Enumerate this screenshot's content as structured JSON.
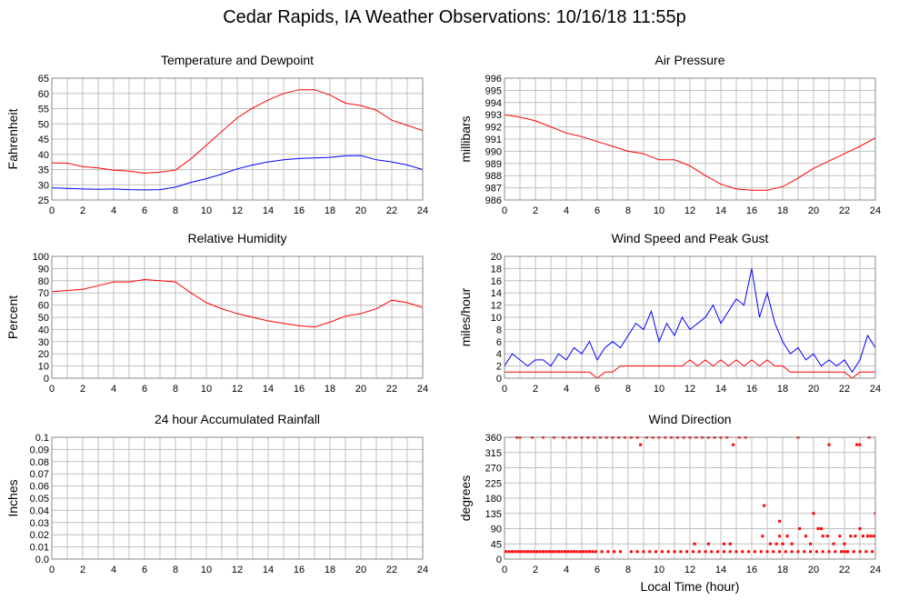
{
  "page": {
    "title": "Cedar Rapids, IA Weather Observations: 10/16/18 11:55p"
  },
  "colors": {
    "red": "#ff0000",
    "blue": "#0000ff",
    "grid": "#bfbfbf",
    "frame": "#888888"
  },
  "chart_data": [
    {
      "type": "line",
      "title": "Temperature and Dewpoint",
      "ylabel": "Fahrenheit",
      "xlabel": "",
      "xlim": [
        0,
        24
      ],
      "ylim": [
        25,
        65
      ],
      "xticks": [
        0,
        2,
        4,
        6,
        8,
        10,
        12,
        14,
        16,
        18,
        20,
        22,
        24
      ],
      "yticks": [
        25,
        30,
        35,
        40,
        45,
        50,
        55,
        60,
        65
      ],
      "grid": true,
      "series": [
        {
          "color": "#ff0000",
          "x": [
            0,
            1,
            2,
            3,
            4,
            5,
            6,
            7,
            8,
            9,
            10,
            11,
            12,
            13,
            14,
            15,
            16,
            17,
            18,
            19,
            20,
            21,
            22,
            23,
            24
          ],
          "y": [
            37.2,
            37.1,
            36,
            35.5,
            34.8,
            34.5,
            33.8,
            34.2,
            34.8,
            38.5,
            43,
            47.5,
            52,
            55.2,
            57.8,
            60,
            61.2,
            61.2,
            59.5,
            56.8,
            56,
            54.5,
            51.2,
            49.5,
            47.8
          ]
        },
        {
          "color": "#0000ff",
          "x": [
            0,
            1,
            2,
            3,
            4,
            5,
            6,
            7,
            8,
            9,
            10,
            11,
            12,
            13,
            14,
            15,
            16,
            17,
            18,
            19,
            20,
            21,
            22,
            23,
            24
          ],
          "y": [
            29,
            28.8,
            28.6,
            28.5,
            28.6,
            28.4,
            28.3,
            28.4,
            29.2,
            30.8,
            32,
            33.5,
            35.2,
            36.5,
            37.5,
            38.2,
            38.6,
            38.8,
            39,
            39.5,
            39.6,
            38.2,
            37.5,
            36.5,
            35
          ]
        }
      ]
    },
    {
      "type": "line",
      "title": "Air Pressure",
      "ylabel": "millibars",
      "xlabel": "",
      "xlim": [
        0,
        24
      ],
      "ylim": [
        986,
        996
      ],
      "xticks": [
        0,
        2,
        4,
        6,
        8,
        10,
        12,
        14,
        16,
        18,
        20,
        22,
        24
      ],
      "yticks": [
        986,
        987,
        988,
        989,
        990,
        991,
        992,
        993,
        994,
        995,
        996
      ],
      "grid": true,
      "series": [
        {
          "color": "#ff0000",
          "x": [
            0,
            1,
            2,
            3,
            4,
            5,
            6,
            7,
            8,
            9,
            10,
            11,
            12,
            13,
            14,
            15,
            16,
            17,
            18,
            19,
            20,
            21,
            22,
            23,
            24
          ],
          "y": [
            993,
            992.8,
            992.5,
            992,
            991.5,
            991.2,
            990.8,
            990.4,
            990,
            989.8,
            989.3,
            989.3,
            988.8,
            988,
            987.3,
            986.9,
            986.8,
            986.8,
            987.1,
            987.8,
            988.6,
            989.2,
            989.8,
            990.4,
            991.1
          ]
        }
      ]
    },
    {
      "type": "line",
      "title": "Relative Humidity",
      "ylabel": "Percent",
      "xlabel": "",
      "xlim": [
        0,
        24
      ],
      "ylim": [
        0,
        100
      ],
      "xticks": [
        0,
        2,
        4,
        6,
        8,
        10,
        12,
        14,
        16,
        18,
        20,
        22,
        24
      ],
      "yticks": [
        0,
        10,
        20,
        30,
        40,
        50,
        60,
        70,
        80,
        90,
        100
      ],
      "grid": true,
      "series": [
        {
          "color": "#ff0000",
          "x": [
            0,
            1,
            2,
            3,
            4,
            5,
            6,
            7,
            8,
            9,
            10,
            11,
            12,
            13,
            14,
            15,
            16,
            17,
            18,
            19,
            20,
            21,
            22,
            23,
            24
          ],
          "y": [
            71,
            72,
            73,
            76,
            79,
            79,
            81,
            80,
            79,
            70,
            62,
            57,
            53,
            50,
            47,
            45,
            43,
            42,
            46,
            51,
            53,
            57,
            64,
            62,
            58
          ]
        }
      ]
    },
    {
      "type": "line",
      "title": "Wind Speed and Peak Gust",
      "ylabel": "miles/hour",
      "xlabel": "",
      "xlim": [
        0,
        24
      ],
      "ylim": [
        0,
        20
      ],
      "xticks": [
        0,
        2,
        4,
        6,
        8,
        10,
        12,
        14,
        16,
        18,
        20,
        22,
        24
      ],
      "yticks": [
        0,
        2,
        4,
        6,
        8,
        10,
        12,
        14,
        16,
        18,
        20
      ],
      "grid": true,
      "series": [
        {
          "color": "#0000ff",
          "x": [
            0,
            0.5,
            1,
            1.5,
            2,
            2.5,
            3,
            3.5,
            4,
            4.5,
            5,
            5.5,
            6,
            6.5,
            7,
            7.5,
            8,
            8.5,
            9,
            9.5,
            10,
            10.5,
            11,
            11.5,
            12,
            12.5,
            13,
            13.5,
            14,
            14.5,
            15,
            15.5,
            16,
            16.5,
            17,
            17.5,
            18,
            18.5,
            19,
            19.5,
            20,
            20.5,
            21,
            21.5,
            22,
            22.5,
            23,
            23.5,
            24
          ],
          "y": [
            2,
            4,
            3,
            2,
            3,
            3,
            2,
            4,
            3,
            5,
            4,
            6,
            3,
            5,
            6,
            5,
            7,
            9,
            8,
            11,
            6,
            9,
            7,
            10,
            8,
            9,
            10,
            12,
            9,
            11,
            13,
            12,
            18,
            10,
            14,
            9,
            6,
            4,
            5,
            3,
            4,
            2,
            3,
            2,
            3,
            1,
            3,
            7,
            5
          ]
        },
        {
          "color": "#ff0000",
          "x": [
            0,
            0.5,
            1,
            1.5,
            2,
            2.5,
            3,
            3.5,
            4,
            4.5,
            5,
            5.5,
            6,
            6.5,
            7,
            7.5,
            8,
            8.5,
            9,
            9.5,
            10,
            10.5,
            11,
            11.5,
            12,
            12.5,
            13,
            13.5,
            14,
            14.5,
            15,
            15.5,
            16,
            16.5,
            17,
            17.5,
            18,
            18.5,
            19,
            19.5,
            20,
            20.5,
            21,
            21.5,
            22,
            22.5,
            23,
            23.5,
            24
          ],
          "y": [
            1,
            1,
            1,
            1,
            1,
            1,
            1,
            1,
            1,
            1,
            1,
            1,
            0,
            1,
            1,
            2,
            2,
            2,
            2,
            2,
            2,
            2,
            2,
            2,
            3,
            2,
            3,
            2,
            3,
            2,
            3,
            2,
            3,
            2,
            3,
            2,
            2,
            1,
            1,
            1,
            1,
            1,
            1,
            1,
            1,
            0,
            1,
            1,
            1
          ]
        }
      ]
    },
    {
      "type": "line",
      "title": "24 hour Accumulated Rainfall",
      "ylabel": "Inches",
      "xlabel": "",
      "xlim": [
        0,
        24
      ],
      "ylim": [
        0,
        0.1
      ],
      "xticks": [
        0,
        2,
        4,
        6,
        8,
        10,
        12,
        14,
        16,
        18,
        20,
        22,
        24
      ],
      "yticks": [
        0.0,
        0.01,
        0.02,
        0.03,
        0.04,
        0.05,
        0.06,
        0.07,
        0.08,
        0.09,
        0.1
      ],
      "ytick_labels": [
        "0.0",
        "0.01",
        "0.02",
        "0.03",
        "0.04",
        "0.05",
        "0.06",
        "0.07",
        "0.08",
        "0.09",
        "0.1"
      ],
      "grid": true,
      "series": [
        {
          "color": "#ff0000",
          "x": [
            0,
            24
          ],
          "y": [
            0,
            0
          ]
        }
      ]
    },
    {
      "type": "scatter",
      "title": "Wind Direction",
      "ylabel": "degrees",
      "xlabel": "Local Time (hour)",
      "xlim": [
        0,
        24
      ],
      "ylim": [
        0,
        360
      ],
      "xticks": [
        0,
        2,
        4,
        6,
        8,
        10,
        12,
        14,
        16,
        18,
        20,
        22,
        24
      ],
      "yticks": [
        0,
        45,
        90,
        135,
        180,
        225,
        270,
        315,
        360
      ],
      "grid": true,
      "series": [
        {
          "color": "#ff0000",
          "x": [
            0.1,
            0.3,
            0.5,
            0.7,
            0.9,
            1.1,
            1.3,
            1.5,
            1.7,
            1.9,
            2.1,
            2.3,
            2.5,
            2.7,
            2.9,
            3.1,
            3.3,
            3.5,
            3.7,
            3.9,
            4.1,
            4.3,
            4.5,
            4.7,
            4.9,
            5.1,
            5.3,
            5.5,
            5.7,
            5.9,
            6.3,
            6.7,
            7.1,
            7.5,
            8.2,
            8.6,
            9.0,
            9.4,
            9.8,
            10.2,
            10.6,
            11.0,
            11.4,
            11.8,
            12.2,
            12.6,
            13.0,
            13.4,
            13.8,
            14.2,
            14.6,
            15.0,
            15.4,
            15.8,
            16.2,
            16.6,
            17.0,
            17.4,
            17.8,
            18.2,
            18.6,
            19.0,
            19.4,
            19.8,
            20.2,
            20.6,
            21.0,
            21.4,
            21.8,
            22.2,
            22.6,
            23.0,
            23.4,
            23.8,
            0.8,
            1.0,
            1.8,
            2.5,
            3.2,
            3.8,
            4.2,
            4.6,
            5.0,
            5.4,
            5.8,
            6.2,
            6.6,
            7.0,
            7.4,
            7.8,
            8.2,
            8.6,
            8.8,
            9.2,
            9.6,
            10.0,
            10.4,
            10.8,
            11.2,
            11.6,
            12.0,
            12.4,
            12.8,
            13.2,
            13.6,
            14.0,
            14.4,
            14.8,
            15.2,
            15.6,
            19.0,
            21.0,
            22.8,
            23.0,
            23.6,
            12.3,
            13.2,
            14.2,
            14.6,
            16.7,
            17.2,
            17.6,
            17.8,
            18.0,
            18.3,
            18.6,
            19.1,
            19.5,
            19.8,
            20.3,
            20.6,
            20.9,
            21.3,
            21.7,
            22.0,
            22.2,
            22.4,
            22.7,
            23.0,
            23.2,
            23.5,
            23.7,
            23.9,
            24.0,
            16.8,
            17.8,
            20.0,
            20.5,
            22.0
          ],
          "y": [
            22,
            22,
            22,
            22,
            22,
            22,
            22,
            22,
            22,
            22,
            22,
            22,
            22,
            22,
            22,
            22,
            22,
            22,
            22,
            22,
            22,
            22,
            22,
            22,
            22,
            22,
            22,
            22,
            22,
            22,
            22,
            22,
            22,
            22,
            22,
            22,
            22,
            22,
            22,
            22,
            22,
            22,
            22,
            22,
            22,
            22,
            22,
            22,
            22,
            22,
            22,
            22,
            22,
            22,
            22,
            22,
            22,
            22,
            22,
            22,
            22,
            22,
            22,
            22,
            22,
            22,
            22,
            22,
            22,
            22,
            22,
            22,
            22,
            22,
            360,
            360,
            360,
            360,
            360,
            360,
            360,
            360,
            360,
            360,
            360,
            360,
            360,
            360,
            360,
            360,
            360,
            360,
            338,
            360,
            360,
            360,
            360,
            360,
            360,
            360,
            360,
            360,
            360,
            360,
            360,
            360,
            360,
            338,
            360,
            360,
            360,
            338,
            338,
            338,
            360,
            45,
            45,
            45,
            45,
            68,
            45,
            45,
            68,
            45,
            68,
            45,
            90,
            68,
            45,
            90,
            68,
            68,
            45,
            68,
            45,
            22,
            68,
            68,
            90,
            68,
            68,
            68,
            68,
            135,
            158,
            112,
            135,
            90,
            22
          ]
        }
      ]
    }
  ]
}
